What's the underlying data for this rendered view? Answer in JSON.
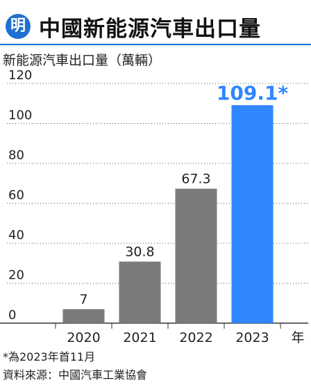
{
  "header": {
    "logo_text": "明",
    "title": "中國新能源汽車出口量"
  },
  "footnotes": {
    "note": "*為2023年首11月",
    "source": "資料來源：中國汽車工業協會"
  },
  "colors": {
    "accent": "#1f6fd1",
    "bar_default": "#7a7a7a",
    "bar_highlight": "#2f86ff"
  },
  "chart_data": {
    "type": "bar",
    "title": "新能源汽車出口量（萬輛）",
    "categories": [
      "2020",
      "2021",
      "2022",
      "2023"
    ],
    "values": [
      7,
      30.8,
      67.3,
      109.1
    ],
    "value_labels": [
      "7",
      "30.8",
      "67.3",
      "109.1*"
    ],
    "xlabel": "年",
    "ylabel": "",
    "ylim": [
      0,
      120
    ],
    "yticks": [
      0,
      20,
      40,
      60,
      80,
      100,
      120
    ],
    "grid": true,
    "highlight_index": 3
  }
}
